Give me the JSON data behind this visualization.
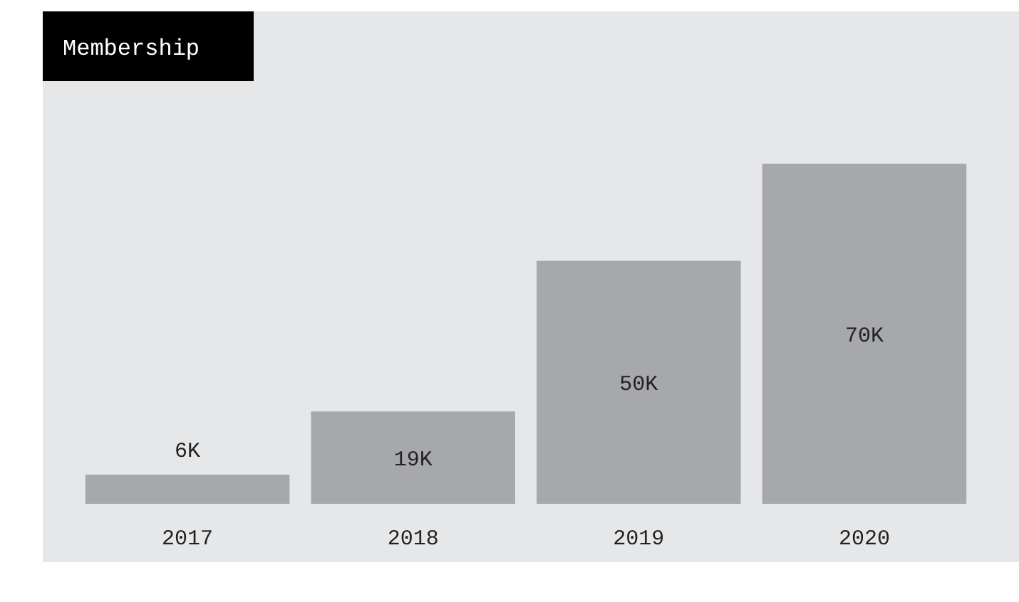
{
  "chart_data": {
    "type": "bar",
    "title": "Membership",
    "categories": [
      "2017",
      "2018",
      "2019",
      "2020"
    ],
    "values": [
      6,
      19,
      50,
      70
    ],
    "value_labels": [
      "6K",
      "19K",
      "50K",
      "70K"
    ],
    "color": "#a7a8ab"
  }
}
